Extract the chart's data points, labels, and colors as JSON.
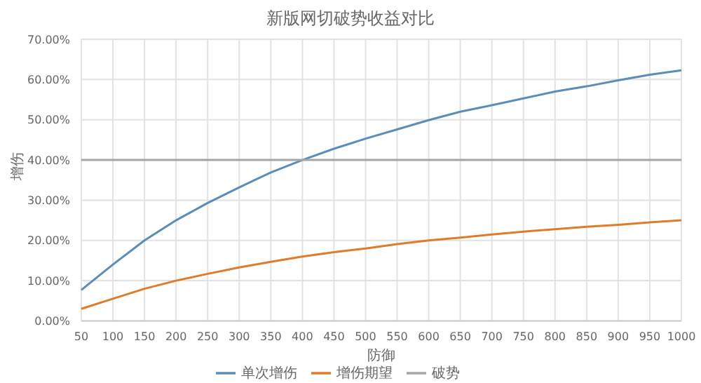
{
  "chart_data": {
    "type": "line",
    "title": "新版网切破势收益对比",
    "xlabel": "防御",
    "ylabel": "增伤",
    "categories": [
      "50",
      "100",
      "150",
      "200",
      "250",
      "300",
      "350",
      "400",
      "450",
      "500",
      "550",
      "600",
      "650",
      "700",
      "750",
      "800",
      "850",
      "900",
      "950",
      "1000"
    ],
    "series": [
      {
        "name": "单次增伤",
        "color": "#5b8db8",
        "values": [
          7.7,
          14,
          20,
          25,
          29.3,
          33.2,
          36.9,
          40,
          42.8,
          45.3,
          47.6,
          49.9,
          52,
          53.6,
          55.3,
          57,
          58.3,
          59.8,
          61.2,
          62.3
        ]
      },
      {
        "name": "增伤期望",
        "color": "#e07b2a",
        "values": [
          3,
          5.5,
          8,
          10,
          11.7,
          13.3,
          14.7,
          16,
          17.1,
          18,
          19.1,
          20,
          20.7,
          21.5,
          22.2,
          22.8,
          23.4,
          23.9,
          24.5,
          25
        ]
      },
      {
        "name": "破势",
        "color": "#a5a5a5",
        "values": [
          40,
          40,
          40,
          40,
          40,
          40,
          40,
          40,
          40,
          40,
          40,
          40,
          40,
          40,
          40,
          40,
          40,
          40,
          40,
          40
        ]
      }
    ],
    "ylim": [
      0,
      70
    ],
    "yticks": [
      {
        "value": 0,
        "label": "0.00%"
      },
      {
        "value": 10,
        "label": "10.00%"
      },
      {
        "value": 20,
        "label": "20.00%"
      },
      {
        "value": 30,
        "label": "30.00%"
      },
      {
        "value": 40,
        "label": "40.00%"
      },
      {
        "value": 50,
        "label": "50.00%"
      },
      {
        "value": 60,
        "label": "60.00%"
      },
      {
        "value": 70,
        "label": "70.00%"
      }
    ],
    "grid": true,
    "legend": "bottom",
    "marker": "none",
    "line_style": "solid"
  }
}
